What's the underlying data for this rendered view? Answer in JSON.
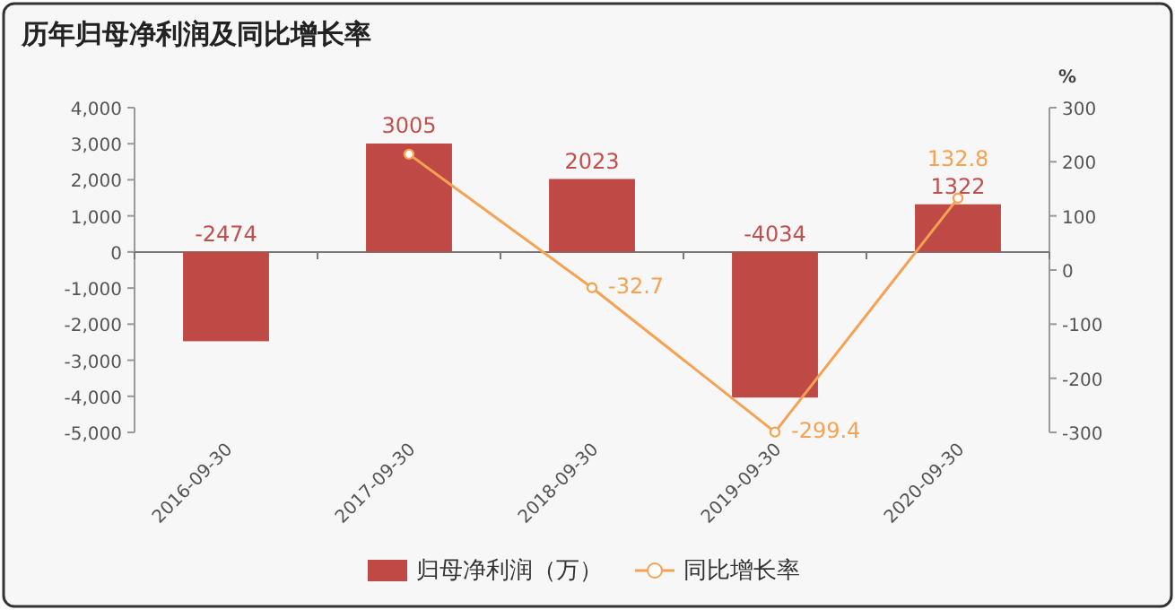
{
  "chart_data": {
    "type": "bar",
    "title": "历年归母净利润及同比增长率",
    "y2label": "%",
    "categories": [
      "2016-09-30",
      "2017-09-30",
      "2018-09-30",
      "2019-09-30",
      "2020-09-30"
    ],
    "series": [
      {
        "name": "归母净利润（万）",
        "color": "#bf4a45",
        "values": [
          -2474,
          3005,
          2023,
          -4034,
          1322
        ],
        "value_labels": [
          "-2474",
          "3005",
          "2023",
          "-4034",
          "1322"
        ]
      },
      {
        "name": "同比增长率",
        "type": "line",
        "axis": "y2",
        "marker": "circle",
        "color": "#f5a254",
        "values": [
          null,
          214,
          -32.7,
          -299.4,
          132.8
        ],
        "value_labels": [
          null,
          null,
          "-32.7",
          "-299.4",
          "132.8"
        ]
      }
    ],
    "ylim": [
      -5000,
      4000
    ],
    "yticks": [
      {
        "value": -5000,
        "label": "-5,000"
      },
      {
        "value": -4000,
        "label": "-4,000"
      },
      {
        "value": -3000,
        "label": "-3,000"
      },
      {
        "value": -2000,
        "label": "-2,000"
      },
      {
        "value": -1000,
        "label": "-1,000"
      },
      0,
      {
        "value": 1000,
        "label": "1,000"
      },
      {
        "value": 2000,
        "label": "2,000"
      },
      {
        "value": 3000,
        "label": "3,000"
      },
      {
        "value": 4000,
        "label": "4,000"
      }
    ],
    "y2lim": [
      -300,
      300
    ],
    "y2ticks": [
      -300,
      -200,
      -100,
      0,
      100,
      200,
      300
    ],
    "legend": "bottom"
  }
}
